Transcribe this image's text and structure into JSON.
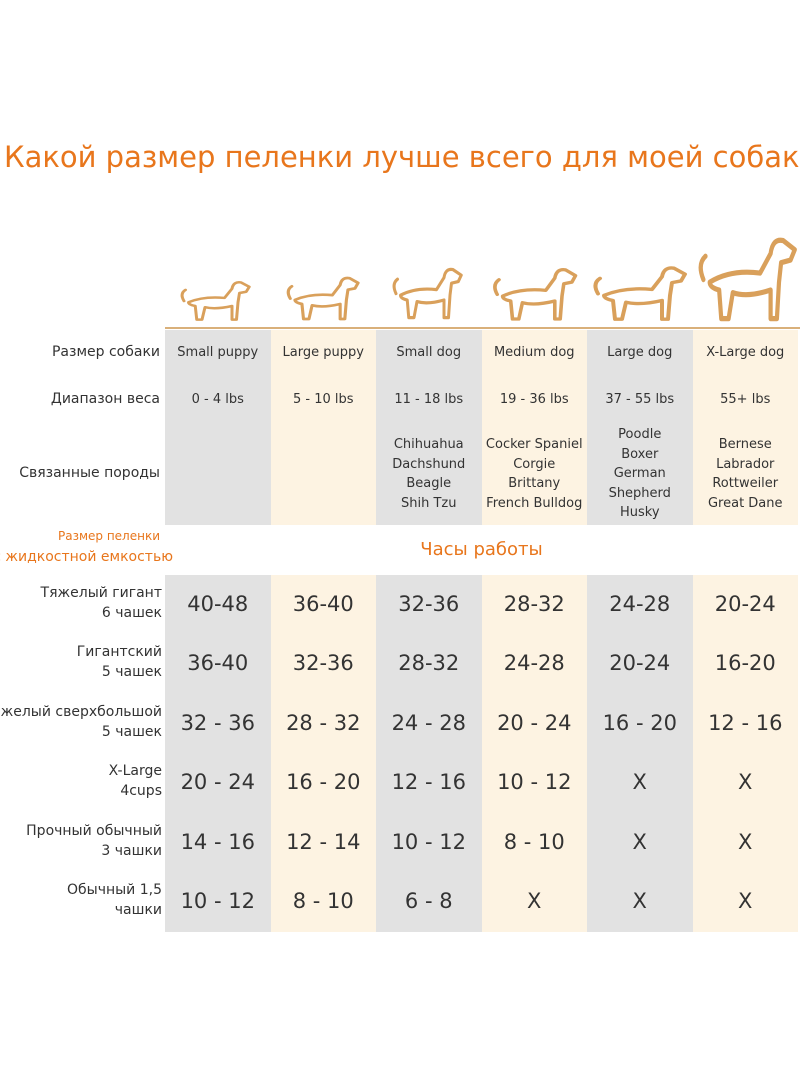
{
  "title": "Какой размер пеленки лучше всего для моей собаки?",
  "dog_table": {
    "row_labels": [
      "Размер собаки",
      "Диапазон веса",
      "Связанные породы"
    ],
    "columns": [
      {
        "size": "Small puppy",
        "weight": "0 - 4 lbs",
        "breeds": []
      },
      {
        "size": "Large puppy",
        "weight": "5 - 10 lbs",
        "breeds": []
      },
      {
        "size": "Small dog",
        "weight": "11 - 18 lbs",
        "breeds": [
          "Chihuahua",
          "Dachshund",
          "Beagle",
          "Shih Tzu"
        ]
      },
      {
        "size": "Medium dog",
        "weight": "19 - 36 lbs",
        "breeds": [
          "Cocker Spaniel",
          "Corgie",
          "Brittany",
          "French Bulldog"
        ]
      },
      {
        "size": "Large dog",
        "weight": "37 - 55 lbs",
        "breeds": [
          "Poodle",
          "Boxer",
          "German",
          "Shepherd",
          "Husky"
        ]
      },
      {
        "size": "X-Large dog",
        "weight": "55+ lbs",
        "breeds": [
          "Bernese",
          "Labrador",
          "Rottweiler",
          "Great Dane"
        ]
      }
    ]
  },
  "pad_table": {
    "header_label": [
      "Размер пеленки",
      "с жидкостной емкостью"
    ],
    "header": "Часы работы",
    "rows": [
      {
        "label": [
          "Тяжелый гигант",
          "6 чашек"
        ],
        "values": [
          "40-48",
          "36-40",
          "32-36",
          "28-32",
          "24-28",
          "20-24"
        ]
      },
      {
        "label": [
          "Гигантский",
          "5 чашек"
        ],
        "values": [
          "36-40",
          "32-36",
          "28-32",
          "24-28",
          "20-24",
          "16-20"
        ]
      },
      {
        "label": [
          "Тяжелый сверхбольшой",
          "5 чашек"
        ],
        "values": [
          "32 - 36",
          "28 - 32",
          "24 - 28",
          "20 - 24",
          "16 - 20",
          "12 - 16"
        ]
      },
      {
        "label": [
          "X-Large",
          "4cups"
        ],
        "values": [
          "20 - 24",
          "16 - 20",
          "12 - 16",
          "10 - 12",
          "X",
          "X"
        ]
      },
      {
        "label": [
          "Прочный обычный",
          "3 чашки"
        ],
        "values": [
          "14 - 16",
          "12 - 14",
          "10 - 12",
          "8 - 10",
          "X",
          "X"
        ]
      },
      {
        "label": [
          "Обычный 1,5",
          "чашки"
        ],
        "values": [
          "10 - 12",
          "8 - 10",
          "6 - 8",
          "X",
          "X",
          "X"
        ]
      }
    ]
  }
}
